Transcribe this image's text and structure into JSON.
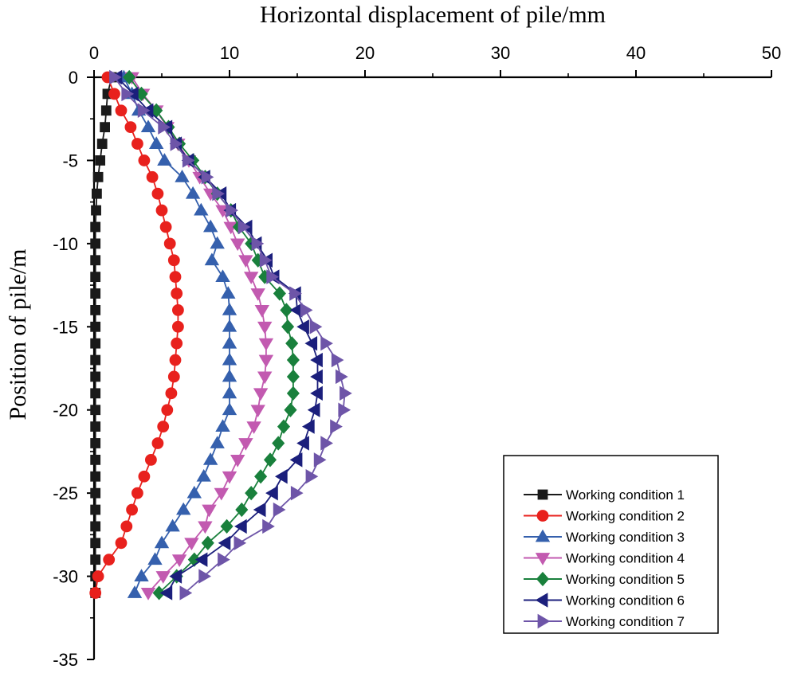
{
  "chart_data": {
    "type": "line",
    "title": "",
    "xlabel": "Horizontal displacement of pile/mm",
    "ylabel": "Position of pile/m",
    "xlim": [
      0,
      50
    ],
    "ylim": [
      -35,
      0
    ],
    "xticks": [
      0,
      10,
      20,
      30,
      40,
      50
    ],
    "yticks": [
      0,
      -5,
      -10,
      -15,
      -20,
      -25,
      -30,
      -35
    ],
    "x_axis_position": "top",
    "legend_position": "bottom-right",
    "grid": false,
    "y": [
      0,
      -1,
      -2,
      -3,
      -4,
      -5,
      -6,
      -7,
      -8,
      -9,
      -10,
      -11,
      -12,
      -13,
      -14,
      -15,
      -16,
      -17,
      -18,
      -19,
      -20,
      -21,
      -22,
      -23,
      -24,
      -25,
      -26,
      -27,
      -28,
      -29,
      -30,
      -31
    ],
    "series": [
      {
        "name": "Working condition 1",
        "color": "#1a1a1a",
        "marker": "square",
        "x": [
          1.3,
          1.0,
          0.9,
          0.8,
          0.6,
          0.45,
          0.3,
          0.2,
          0.15,
          0.1,
          0.1,
          0.1,
          0.1,
          0.1,
          0.1,
          0.1,
          0.1,
          0.1,
          0.1,
          0.1,
          0.1,
          0.1,
          0.1,
          0.1,
          0.1,
          0.1,
          0.1,
          0.1,
          0.1,
          0.1,
          0.1,
          0.1
        ]
      },
      {
        "name": "Working condition 2",
        "color": "#e8211d",
        "marker": "circle",
        "x": [
          1.0,
          1.5,
          2.0,
          2.7,
          3.2,
          3.7,
          4.3,
          4.7,
          5.0,
          5.3,
          5.6,
          5.9,
          6.0,
          6.1,
          6.2,
          6.2,
          6.1,
          6.0,
          5.9,
          5.7,
          5.4,
          5.1,
          4.7,
          4.2,
          3.7,
          3.2,
          2.8,
          2.4,
          2.0,
          1.1,
          0.3,
          0.1
        ]
      },
      {
        "name": "Working condition 3",
        "color": "#3560ad",
        "marker": "triangle-up",
        "x": [
          2.2,
          2.8,
          3.3,
          4.0,
          4.6,
          5.2,
          6.5,
          7.3,
          7.9,
          8.6,
          9.1,
          8.7,
          9.5,
          9.9,
          10.0,
          10.0,
          10.0,
          10.0,
          10.0,
          10.0,
          10.0,
          9.5,
          9.1,
          8.6,
          8.1,
          7.4,
          6.6,
          5.8,
          5.0,
          4.5,
          3.5,
          3.0
        ]
      },
      {
        "name": "Working condition 4",
        "color": "#c25ab0",
        "marker": "triangle-down",
        "x": [
          2.8,
          3.6,
          4.6,
          5.4,
          6.2,
          7.0,
          7.8,
          8.6,
          9.5,
          10.1,
          10.6,
          11.2,
          11.6,
          12.1,
          12.4,
          12.6,
          12.7,
          12.7,
          12.6,
          12.3,
          12.1,
          11.8,
          11.2,
          10.6,
          10.0,
          9.4,
          8.5,
          8.2,
          7.2,
          6.3,
          5.1,
          4.0
        ]
      },
      {
        "name": "Working condition 5",
        "color": "#19803c",
        "marker": "diamond",
        "x": [
          2.6,
          3.5,
          4.6,
          5.5,
          6.3,
          7.3,
          8.2,
          9.1,
          10.1,
          10.7,
          11.6,
          12.1,
          12.6,
          13.7,
          14.2,
          14.3,
          14.6,
          14.7,
          14.7,
          14.7,
          14.5,
          14.0,
          13.6,
          13.0,
          12.3,
          11.6,
          10.9,
          9.8,
          8.4,
          7.4,
          6.1,
          4.8
        ]
      },
      {
        "name": "Working condition 6",
        "color": "#1b1f7c",
        "marker": "triangle-left",
        "x": [
          1.7,
          2.9,
          4.0,
          5.4,
          6.1,
          7.0,
          8.2,
          9.4,
          10.1,
          11.3,
          12.0,
          12.8,
          13.3,
          14.9,
          15.0,
          15.5,
          16.1,
          16.5,
          16.5,
          16.5,
          16.3,
          15.9,
          15.5,
          15.0,
          13.9,
          13.2,
          12.3,
          10.9,
          9.7,
          8.0,
          6.1,
          5.4
        ]
      },
      {
        "name": "Working condition 7",
        "color": "#6e55a8",
        "marker": "triangle-right",
        "x": [
          1.5,
          2.4,
          3.6,
          5.1,
          6.0,
          6.9,
          8.3,
          9.1,
          10.1,
          11.0,
          12.0,
          12.6,
          13.1,
          14.8,
          15.6,
          16.3,
          17.1,
          17.9,
          18.2,
          18.5,
          18.4,
          17.8,
          17.1,
          16.6,
          16.0,
          14.9,
          13.6,
          12.8,
          10.7,
          9.5,
          8.1,
          6.7
        ]
      }
    ]
  }
}
